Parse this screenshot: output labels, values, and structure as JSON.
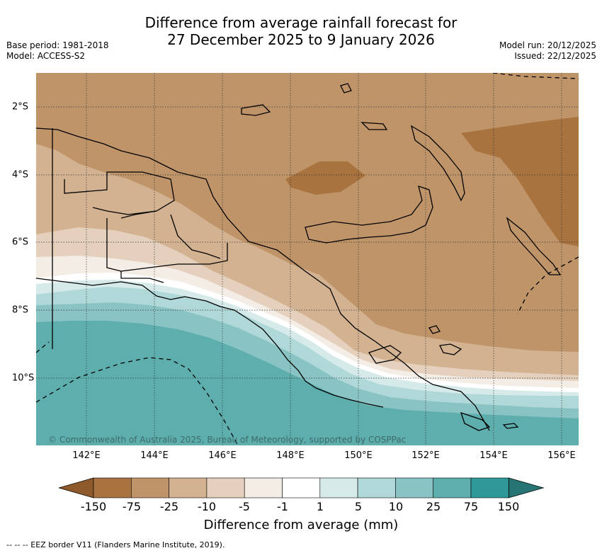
{
  "title_line1": "Difference from average rainfall forecast for",
  "title_line2": "27 December 2025 to 9 January 2026",
  "base_period": "Base period: 1981-2018",
  "model": "Model: ACCESS-S2",
  "model_run": "Model run: 20/12/2025",
  "issued": "Issued: 22/12/2025",
  "credit": "© Commonwealth of Australia 2025, Bureau of Meteorology, supported by COSPPac",
  "x_ticks": [
    "142°E",
    "144°E",
    "146°E",
    "148°E",
    "150°E",
    "152°E",
    "154°E",
    "156°E"
  ],
  "y_ticks": [
    "2°S",
    "4°S",
    "6°S",
    "8°S",
    "10°S"
  ],
  "colorbar": {
    "labels": [
      "-150",
      "-75",
      "-25",
      "-10",
      "-5",
      "-1",
      "1",
      "5",
      "10",
      "25",
      "75",
      "150"
    ],
    "colors": [
      "#8f5a2b",
      "#a8733f",
      "#c09469",
      "#d3b291",
      "#e5d0bd",
      "#f3ede6",
      "#ffffff",
      "#d6eaea",
      "#b0d8d8",
      "#89c3c3",
      "#5eaeae",
      "#2f9898",
      "#267474"
    ],
    "title": "Difference from average (mm)"
  },
  "legend_eez": "--  --  -- EEZ border V11 (Flanders Marine Institute, 2019)."
}
